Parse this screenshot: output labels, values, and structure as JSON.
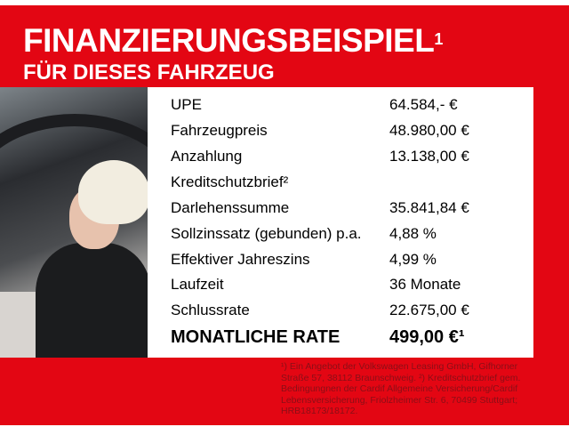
{
  "header": {
    "title": "FINANZIERUNGSBEISPIEL",
    "title_sup": "1",
    "subtitle": "FÜR DIESES FAHRZEUG"
  },
  "rows": [
    {
      "label": "UPE",
      "value": "64.584,- €"
    },
    {
      "label": "Fahrzeugpreis",
      "value": "48.980,00 €"
    },
    {
      "label": "Anzahlung",
      "value": "13.138,00 €"
    },
    {
      "label": "Kreditschutzbrief²",
      "value": ""
    },
    {
      "label": "Darlehenssumme",
      "value": "35.841,84 €"
    },
    {
      "label": "Sollzinssatz (gebunden) p.a.",
      "value": "4,88 %"
    },
    {
      "label": "Effektiver Jahreszins",
      "value": "4,99 %"
    },
    {
      "label": "Laufzeit",
      "value": "36 Monate"
    },
    {
      "label": "Schlussrate",
      "value": "22.675,00 €"
    }
  ],
  "total": {
    "label": "MONATLICHE RATE",
    "value": "499,00 €¹"
  },
  "footnote": "¹) Ein Angebot der Volkswagen Leasing GmbH, Gifhorner Straße 57, 38112 Braunschweig. ²) Kreditschutzbrief gem. Bedingungnen der Cardif Allgemeine Versicherung/Cardif Lebensversicherung, Friolzheimer Str. 6, 70499 Stuttgart; HRB18173/18172.",
  "colors": {
    "brand_red": "#e30613",
    "footnote_text": "#8a0f17"
  }
}
